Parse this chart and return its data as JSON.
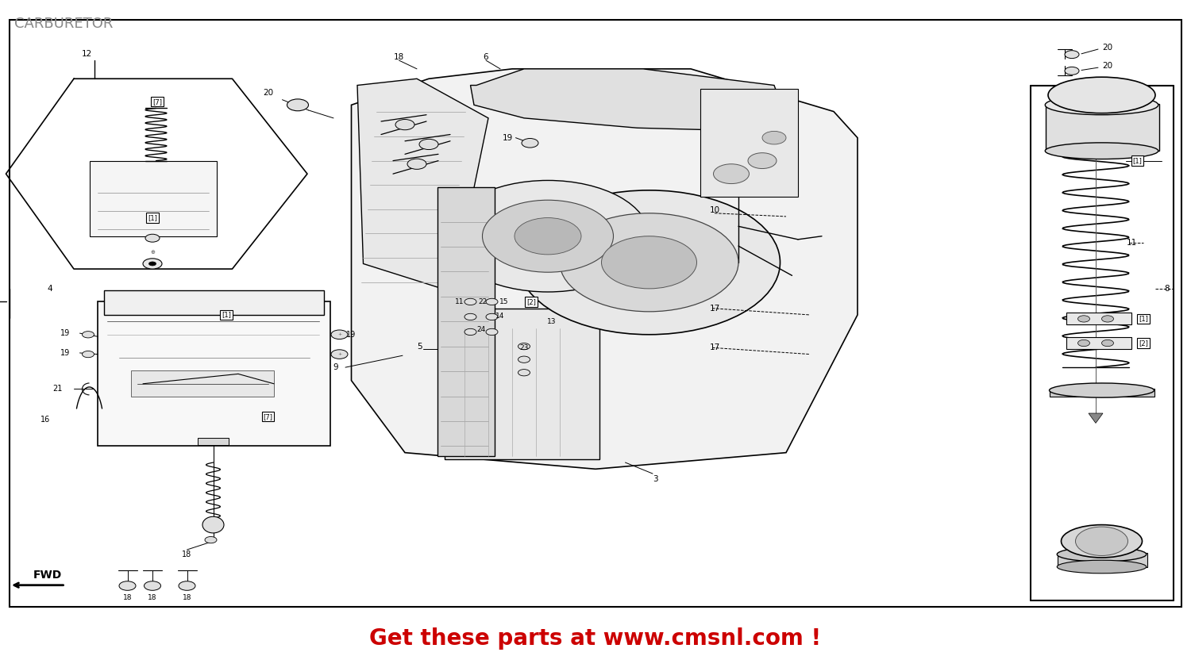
{
  "title": "CARBURETOR",
  "footer_text": "Get these parts at www.cmsnl.com !",
  "footer_color": "#cc0000",
  "bg_color": "#ffffff",
  "title_color": "#888888",
  "title_fontsize": 13,
  "footer_fontsize": 20,
  "fig_width": 15.0,
  "fig_height": 8.27,
  "dpi": 100,
  "watermark": "WWW.CMSNL.COM",
  "line_color": "#000000",
  "outer_border": [
    0.008,
    0.075,
    0.984,
    0.895
  ]
}
